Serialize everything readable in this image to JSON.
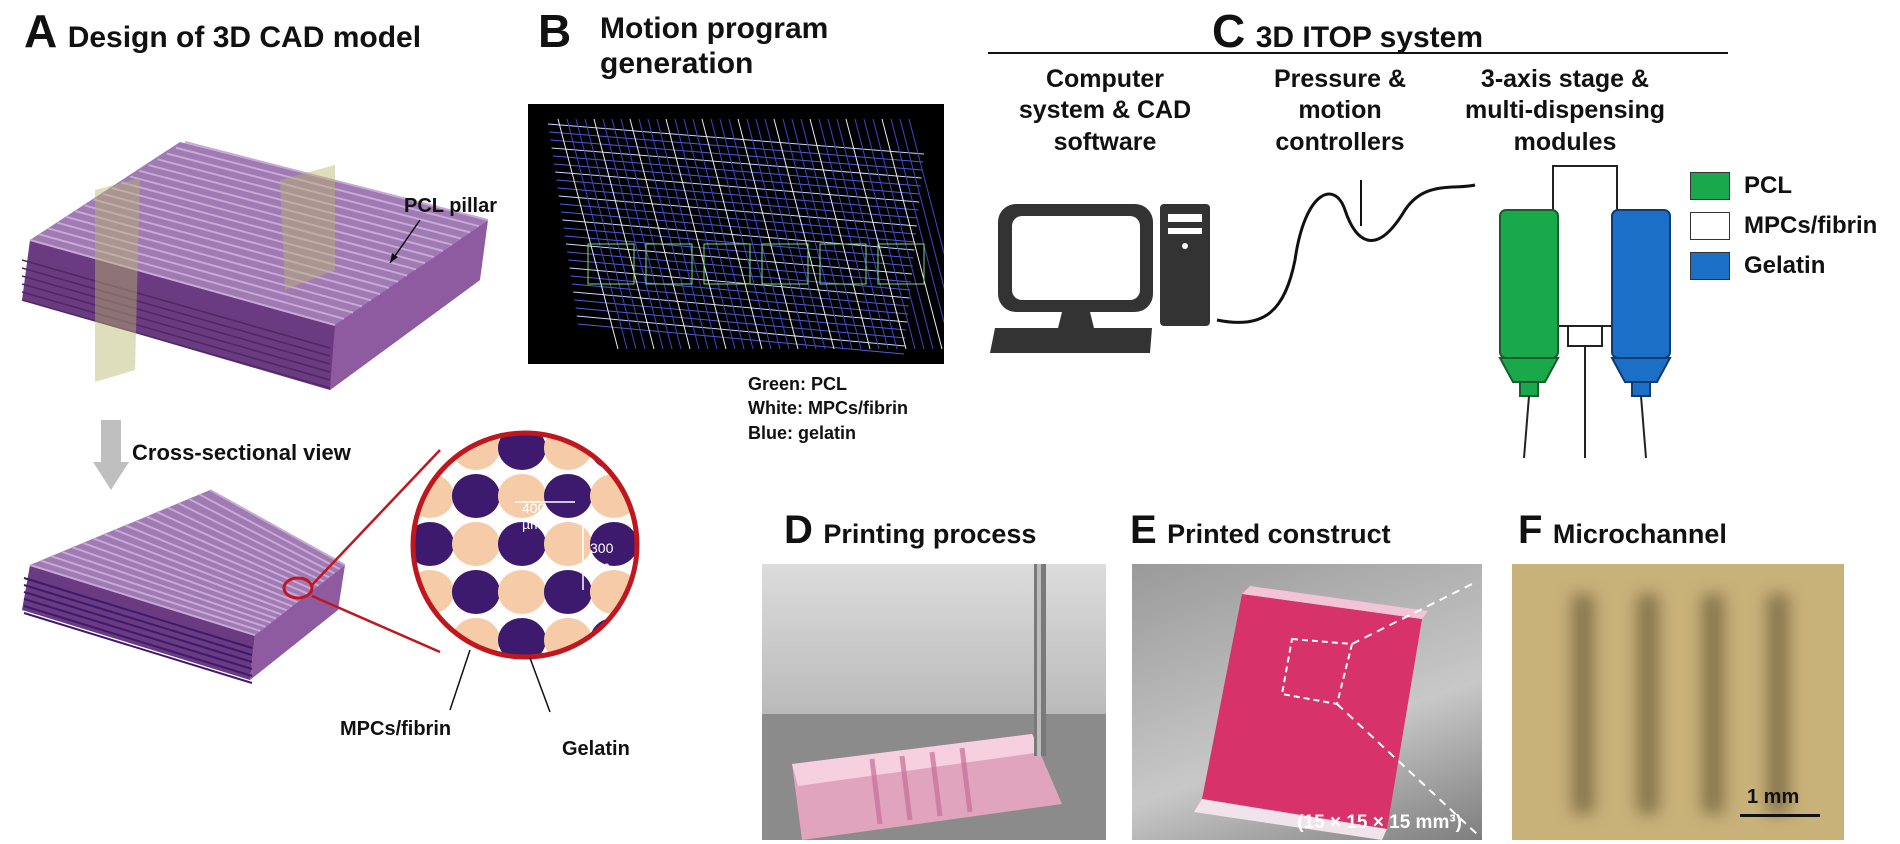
{
  "panels": {
    "a": {
      "letter": "A",
      "title": "Design of 3D CAD model",
      "pcl_pillar": "PCL pillar",
      "cross_section": "Cross-sectional view",
      "mpcs_fibrin": "MPCs/fibrin",
      "gelatin": "Gelatin",
      "dim_400": "400 µm",
      "dim_300a": "300",
      "dim_300b": "µm"
    },
    "b": {
      "letter": "B",
      "title_line1": "Motion program",
      "title_line2": "generation",
      "legend_line1": "Green: PCL",
      "legend_line2": "White: MPCs/fibrin",
      "legend_line3": "Blue: gelatin"
    },
    "c": {
      "letter": "C",
      "title": "3D ITOP system",
      "col1": [
        "Computer",
        "system & CAD",
        "software"
      ],
      "col2": [
        "Pressure &",
        "motion",
        "controllers"
      ],
      "col3": [
        "3-axis stage &",
        "multi-dispensing",
        "modules"
      ],
      "legend": [
        {
          "label": "PCL",
          "color": "#19a84a"
        },
        {
          "label": "MPCs/fibrin",
          "color": "#ffffff"
        },
        {
          "label": "Gelatin",
          "color": "#1c6fc6"
        }
      ]
    },
    "d": {
      "letter": "D",
      "title": "Printing process"
    },
    "e": {
      "letter": "E",
      "title": "Printed construct",
      "size": "(15 × 15 × 15 mm³)"
    },
    "f": {
      "letter": "F",
      "title": "Microchannel",
      "scale": "1 mm"
    }
  },
  "colors": {
    "purple": "#8e5ba1",
    "dark_purple": "#3d1a6e",
    "peach": "#f6cba8",
    "red": "#c0161d",
    "green": "#19a84a",
    "blue": "#1c6fc6",
    "pink": "#e2457a"
  }
}
